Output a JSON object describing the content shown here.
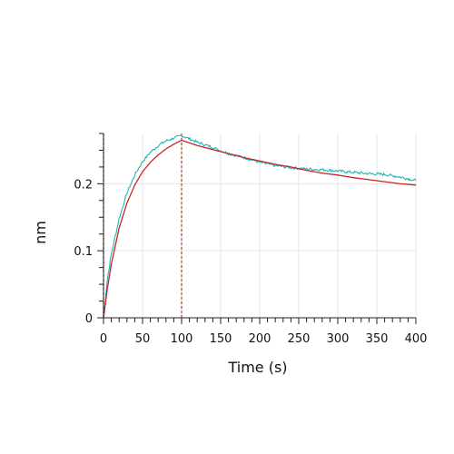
{
  "chart_data": {
    "type": "line",
    "title": "",
    "xlabel": "Time (s)",
    "ylabel": "nm",
    "xlim": [
      0,
      400
    ],
    "ylim": [
      0,
      0.275
    ],
    "x_ticks": [
      0,
      50,
      100,
      150,
      200,
      250,
      300,
      350,
      400
    ],
    "x_tick_labels": [
      "0",
      "50",
      "100",
      "150",
      "200",
      "250",
      "300",
      "350",
      "400"
    ],
    "y_ticks": [
      0,
      0.1,
      0.2
    ],
    "y_tick_labels": [
      "0",
      "0.1",
      "0.2"
    ],
    "grid": true,
    "legend": "none",
    "vertical_markers": [
      {
        "x": 0,
        "color": "#222222",
        "style": "dashed"
      },
      {
        "x": 100,
        "color": "#c0392b",
        "style": "dashed"
      }
    ],
    "series": [
      {
        "color": "#1fb5b5",
        "style": "noisy-data",
        "x": [
          0,
          5,
          10,
          20,
          30,
          40,
          50,
          60,
          70,
          80,
          90,
          100,
          120,
          140,
          160,
          180,
          200,
          220,
          240,
          260,
          280,
          300,
          320,
          340,
          360,
          380,
          400
        ],
        "y": [
          0.0,
          0.058,
          0.095,
          0.148,
          0.186,
          0.213,
          0.233,
          0.247,
          0.257,
          0.264,
          0.268,
          0.272,
          0.262,
          0.254,
          0.245,
          0.239,
          0.232,
          0.227,
          0.224,
          0.222,
          0.221,
          0.219,
          0.217,
          0.215,
          0.214,
          0.21,
          0.205
        ]
      },
      {
        "color": "#cc2222",
        "style": "fit",
        "x": [
          0,
          5,
          10,
          20,
          30,
          40,
          50,
          60,
          70,
          80,
          90,
          100,
          120,
          140,
          160,
          180,
          200,
          220,
          240,
          260,
          280,
          300,
          320,
          340,
          360,
          380,
          400
        ],
        "y": [
          0.0,
          0.044,
          0.08,
          0.134,
          0.171,
          0.198,
          0.218,
          0.232,
          0.243,
          0.252,
          0.259,
          0.265,
          0.257,
          0.251,
          0.245,
          0.239,
          0.234,
          0.229,
          0.225,
          0.22,
          0.216,
          0.213,
          0.209,
          0.206,
          0.203,
          0.2,
          0.198
        ]
      }
    ]
  }
}
